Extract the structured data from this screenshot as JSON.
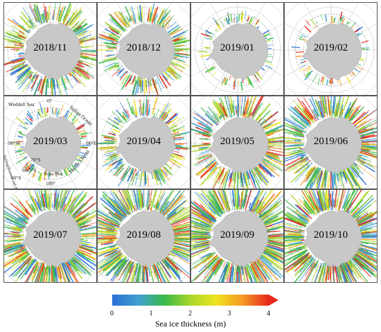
{
  "panels": [
    {
      "date": "2018/11",
      "level": 0.55
    },
    {
      "date": "2018/12",
      "level": 0.45
    },
    {
      "date": "2019/01",
      "level": 0.08
    },
    {
      "date": "2019/02",
      "level": 0.05
    },
    {
      "date": "2019/03",
      "level": 0.15
    },
    {
      "date": "2019/04",
      "level": 0.4
    },
    {
      "date": "2019/05",
      "level": 0.65
    },
    {
      "date": "2019/06",
      "level": 0.75
    },
    {
      "date": "2019/07",
      "level": 0.85
    },
    {
      "date": "2019/08",
      "level": 0.95
    },
    {
      "date": "2019/09",
      "level": 1.0
    },
    {
      "date": "2019/10",
      "level": 0.95
    }
  ],
  "annotations": {
    "weddell_sea": "Weddell Sea",
    "indian_ocean": "Indian Ocean",
    "ross_sea": "Ross Sea",
    "pacific_ocean": "Pacific Ocean",
    "bellingshausen_amundsen": "Bellingshausen and Amundsen Sea",
    "lon_0": "0°",
    "lon_90e": "90°E",
    "lon_90w": "90°W",
    "lon_180": "180°",
    "lat_70s": "70°S",
    "lat_66_5s": "66.5°S",
    "lat_60s": "60°S"
  },
  "colorbar": {
    "title": "Sea ice thickness (m)",
    "ticks": [
      "0",
      "1",
      "2",
      "3",
      "4"
    ],
    "min": 0,
    "max": 4,
    "colors": [
      "#2b6fd6",
      "#3fa0d0",
      "#39b94a",
      "#a8d62a",
      "#f0e41e",
      "#f59a24",
      "#e8281c"
    ]
  },
  "colors": {
    "land": "#c8c8c8",
    "grid": "#bdbdbd",
    "circle": "#777777"
  }
}
